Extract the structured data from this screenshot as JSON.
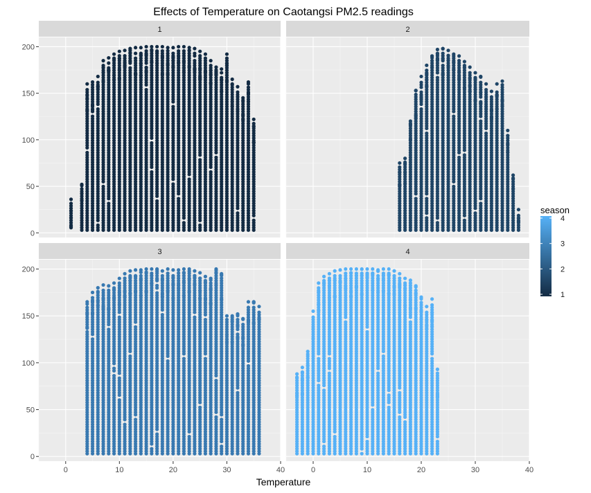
{
  "chart_data": {
    "type": "scatter",
    "title": "Effects of Temperature on Caotangsi PM2.5 readings",
    "xlabel": "Temperature",
    "ylabel": "",
    "facet_by": "season",
    "xlim": [
      -5,
      40
    ],
    "ylim": [
      -5,
      210
    ],
    "x_ticks": [
      0,
      10,
      20,
      30,
      40
    ],
    "y_ticks": [
      0,
      50,
      100,
      150,
      200
    ],
    "x_tick_labels": [
      "0",
      "10",
      "20",
      "30",
      "40"
    ],
    "y_tick_labels": [
      "0",
      "50",
      "100",
      "150",
      "200"
    ],
    "grid": true,
    "legend": {
      "title": "season",
      "type": "continuous",
      "position": "right",
      "range": [
        1,
        4
      ],
      "labels": [
        "1",
        "2",
        "3",
        "4"
      ],
      "low_color": "#132B43",
      "high_color": "#56B1F7"
    },
    "panels": [
      {
        "label": "1",
        "season": 1,
        "color": "#132B43",
        "x_range": [
          1,
          35
        ],
        "y_range": [
          3,
          200
        ],
        "envelope": [
          [
            1,
            36
          ],
          [
            3,
            52
          ],
          [
            4,
            160
          ],
          [
            5,
            162
          ],
          [
            6,
            168
          ],
          [
            7,
            185
          ],
          [
            8,
            188
          ],
          [
            9,
            192
          ],
          [
            10,
            195
          ],
          [
            11,
            196
          ],
          [
            12,
            198
          ],
          [
            13,
            199
          ],
          [
            14,
            199
          ],
          [
            15,
            200
          ],
          [
            16,
            200
          ],
          [
            17,
            200
          ],
          [
            18,
            200
          ],
          [
            19,
            199
          ],
          [
            20,
            199
          ],
          [
            21,
            200
          ],
          [
            22,
            200
          ],
          [
            23,
            199
          ],
          [
            24,
            198
          ],
          [
            25,
            195
          ],
          [
            26,
            192
          ],
          [
            27,
            185
          ],
          [
            28,
            178
          ],
          [
            29,
            176
          ],
          [
            30,
            192
          ],
          [
            31,
            165
          ],
          [
            32,
            157
          ],
          [
            33,
            145
          ],
          [
            34,
            162
          ],
          [
            35,
            122
          ]
        ]
      },
      {
        "label": "2",
        "season": 2,
        "color": "#1F4566",
        "x_range": [
          16,
          38
        ],
        "y_range": [
          3,
          200
        ],
        "envelope": [
          [
            16,
            75
          ],
          [
            17,
            80
          ],
          [
            18,
            120
          ],
          [
            19,
            153
          ],
          [
            20,
            168
          ],
          [
            21,
            180
          ],
          [
            22,
            190
          ],
          [
            23,
            197
          ],
          [
            24,
            198
          ],
          [
            25,
            196
          ],
          [
            26,
            192
          ],
          [
            27,
            190
          ],
          [
            28,
            184
          ],
          [
            29,
            178
          ],
          [
            30,
            172
          ],
          [
            31,
            168
          ],
          [
            32,
            160
          ],
          [
            33,
            152
          ],
          [
            34,
            160
          ],
          [
            35,
            163
          ],
          [
            36,
            110
          ],
          [
            37,
            62
          ],
          [
            38,
            25
          ]
        ]
      },
      {
        "label": "3",
        "season": 3,
        "color": "#3879B1",
        "x_range": [
          4,
          36
        ],
        "y_range": [
          3,
          200
        ],
        "envelope": [
          [
            4,
            165
          ],
          [
            5,
            175
          ],
          [
            6,
            180
          ],
          [
            7,
            183
          ],
          [
            8,
            182
          ],
          [
            9,
            185
          ],
          [
            10,
            190
          ],
          [
            11,
            195
          ],
          [
            12,
            198
          ],
          [
            13,
            199
          ],
          [
            14,
            199
          ],
          [
            15,
            200
          ],
          [
            16,
            200
          ],
          [
            17,
            200
          ],
          [
            18,
            198
          ],
          [
            19,
            200
          ],
          [
            20,
            199
          ],
          [
            21,
            199
          ],
          [
            22,
            200
          ],
          [
            23,
            200
          ],
          [
            24,
            198
          ],
          [
            25,
            196
          ],
          [
            26,
            192
          ],
          [
            27,
            190
          ],
          [
            28,
            200
          ],
          [
            29,
            195
          ],
          [
            30,
            150
          ],
          [
            31,
            150
          ],
          [
            32,
            152
          ],
          [
            33,
            147
          ],
          [
            34,
            165
          ],
          [
            35,
            165
          ],
          [
            36,
            160
          ]
        ]
      },
      {
        "label": "4",
        "season": 4,
        "color": "#56B1F7",
        "x_range": [
          -3,
          23
        ],
        "y_range": [
          3,
          200
        ],
        "envelope": [
          [
            -3,
            88
          ],
          [
            -2,
            95
          ],
          [
            -1,
            112
          ],
          [
            0,
            155
          ],
          [
            1,
            185
          ],
          [
            2,
            192
          ],
          [
            3,
            195
          ],
          [
            4,
            198
          ],
          [
            5,
            199
          ],
          [
            6,
            200
          ],
          [
            7,
            200
          ],
          [
            8,
            200
          ],
          [
            9,
            200
          ],
          [
            10,
            200
          ],
          [
            11,
            200
          ],
          [
            12,
            199
          ],
          [
            13,
            200
          ],
          [
            14,
            200
          ],
          [
            15,
            198
          ],
          [
            16,
            195
          ],
          [
            17,
            190
          ],
          [
            18,
            188
          ],
          [
            19,
            182
          ],
          [
            20,
            170
          ],
          [
            21,
            160
          ],
          [
            22,
            168
          ],
          [
            23,
            93
          ]
        ]
      }
    ]
  }
}
